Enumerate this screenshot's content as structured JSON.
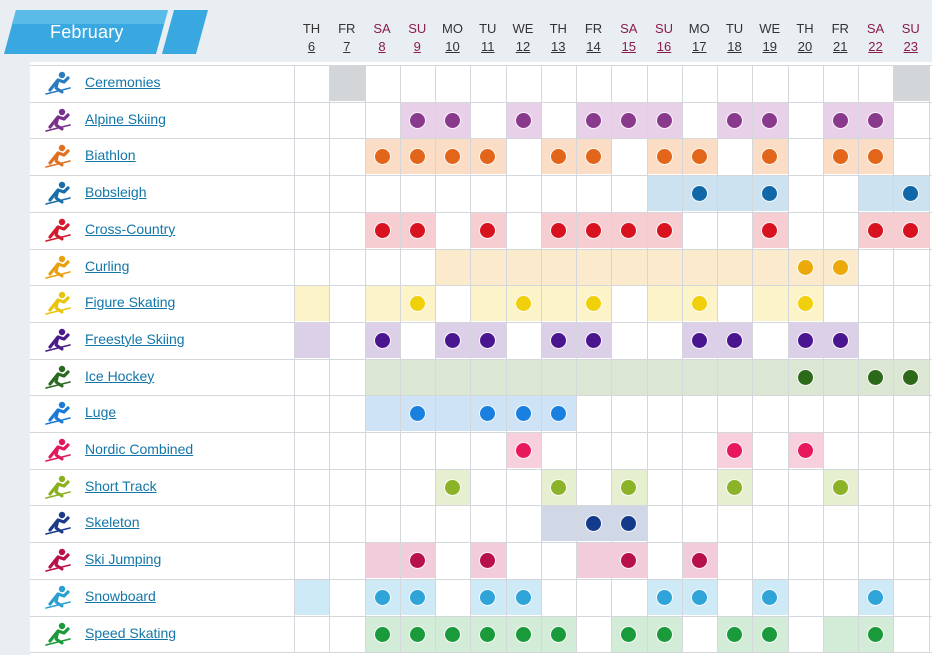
{
  "month": "February",
  "days": [
    {
      "dn": "TH",
      "num": "6",
      "weekend": false
    },
    {
      "dn": "FR",
      "num": "7",
      "weekend": false
    },
    {
      "dn": "SA",
      "num": "8",
      "weekend": true
    },
    {
      "dn": "SU",
      "num": "9",
      "weekend": true
    },
    {
      "dn": "MO",
      "num": "10",
      "weekend": false
    },
    {
      "dn": "TU",
      "num": "11",
      "weekend": false
    },
    {
      "dn": "WE",
      "num": "12",
      "weekend": false
    },
    {
      "dn": "TH",
      "num": "13",
      "weekend": false
    },
    {
      "dn": "FR",
      "num": "14",
      "weekend": false
    },
    {
      "dn": "SA",
      "num": "15",
      "weekend": true
    },
    {
      "dn": "SU",
      "num": "16",
      "weekend": true
    },
    {
      "dn": "MO",
      "num": "17",
      "weekend": false
    },
    {
      "dn": "TU",
      "num": "18",
      "weekend": false
    },
    {
      "dn": "WE",
      "num": "19",
      "weekend": false
    },
    {
      "dn": "TH",
      "num": "20",
      "weekend": false
    },
    {
      "dn": "FR",
      "num": "21",
      "weekend": false
    },
    {
      "dn": "SA",
      "num": "22",
      "weekend": true
    },
    {
      "dn": "SU",
      "num": "23",
      "weekend": true
    }
  ],
  "colors": {
    "header_accent": "#3aa8e0",
    "weekday_text": "#333333",
    "weekend_text": "#8a1c4b",
    "link": "#1276a8"
  },
  "sports": [
    {
      "name": "Ceremonies",
      "icon": "ceremonies-icon",
      "color": "#2a7cc0",
      "bg": "#d3d6d9",
      "dot": "#2a7cc0",
      "active": [
        1,
        17
      ],
      "medal": []
    },
    {
      "name": "Alpine Skiing",
      "icon": "alpine-skiing-icon",
      "color": "#7a2f8a",
      "bg": "#e8d0e8",
      "dot": "#8a3a8c",
      "active": [
        3,
        4,
        6,
        8,
        9,
        10,
        12,
        13,
        15,
        16
      ],
      "medal": [
        3,
        4,
        6,
        8,
        9,
        10,
        12,
        13,
        15,
        16
      ]
    },
    {
      "name": "Biathlon",
      "icon": "biathlon-icon",
      "color": "#e07020",
      "bg": "#fbdcc4",
      "dot": "#e2651a",
      "active": [
        2,
        3,
        4,
        5,
        7,
        8,
        10,
        11,
        13,
        15,
        16
      ],
      "medal": [
        2,
        3,
        4,
        5,
        7,
        8,
        10,
        11,
        13,
        15,
        16
      ]
    },
    {
      "name": "Bobsleigh",
      "icon": "bobsleigh-icon",
      "color": "#1a6ea8",
      "bg": "#cde2f0",
      "dot": "#1068a8",
      "active": [
        10,
        11,
        12,
        13,
        16,
        17
      ],
      "medal": [
        11,
        13,
        17
      ]
    },
    {
      "name": "Cross-Country",
      "icon": "cross-country-icon",
      "color": "#d41a2a",
      "bg": "#f6cdd0",
      "dot": "#d8121e",
      "active": [
        2,
        3,
        5,
        7,
        8,
        9,
        10,
        13,
        16,
        17
      ],
      "medal": [
        2,
        3,
        5,
        7,
        8,
        9,
        10,
        13,
        16,
        17
      ]
    },
    {
      "name": "Curling",
      "icon": "curling-icon",
      "color": "#e8a010",
      "bg": "#fbeacb",
      "dot": "#ecaa0a",
      "active": [
        4,
        5,
        6,
        7,
        8,
        9,
        10,
        11,
        12,
        13,
        14,
        15
      ],
      "medal": [
        14,
        15
      ]
    },
    {
      "name": "Figure Skating",
      "icon": "figure-skating-icon",
      "color": "#e8c40a",
      "bg": "#fcf4c8",
      "dot": "#f0d00a",
      "active": [
        0,
        2,
        3,
        5,
        6,
        7,
        8,
        10,
        11,
        13,
        14
      ],
      "medal": [
        3,
        6,
        8,
        11,
        14
      ]
    },
    {
      "name": "Freestyle Skiing",
      "icon": "freestyle-skiing-icon",
      "color": "#4a1a8a",
      "bg": "#dcd0e8",
      "dot": "#4a1690",
      "active": [
        0,
        2,
        4,
        5,
        7,
        8,
        11,
        12,
        14,
        15
      ],
      "medal": [
        2,
        4,
        5,
        7,
        8,
        11,
        12,
        14,
        15
      ]
    },
    {
      "name": "Ice Hockey",
      "icon": "ice-hockey-icon",
      "color": "#2a6a20",
      "bg": "#dbe6d3",
      "dot": "#2c6a1a",
      "active": [
        2,
        3,
        4,
        5,
        6,
        7,
        8,
        9,
        10,
        11,
        12,
        13,
        14,
        15,
        16,
        17
      ],
      "medal": [
        14,
        16,
        17
      ]
    },
    {
      "name": "Luge",
      "icon": "luge-icon",
      "color": "#1a7ad8",
      "bg": "#cfe3f6",
      "dot": "#1a80e0",
      "active": [
        2,
        3,
        4,
        5,
        6,
        7
      ],
      "medal": [
        3,
        5,
        6,
        7
      ]
    },
    {
      "name": "Nordic Combined",
      "icon": "nordic-combined-icon",
      "color": "#e01a5a",
      "bg": "#f8cfdc",
      "dot": "#e8185c",
      "active": [
        6,
        12,
        14
      ],
      "medal": [
        6,
        12,
        14
      ]
    },
    {
      "name": "Short Track",
      "icon": "short-track-icon",
      "color": "#8ab020",
      "bg": "#e6efd0",
      "dot": "#8cb228",
      "active": [
        4,
        7,
        9,
        12,
        15
      ],
      "medal": [
        4,
        7,
        9,
        12,
        15
      ]
    },
    {
      "name": "Skeleton",
      "icon": "skeleton-icon",
      "color": "#1a3a8a",
      "bg": "#d0d8e8",
      "dot": "#143a8c",
      "active": [
        7,
        8,
        9
      ],
      "medal": [
        8,
        9
      ]
    },
    {
      "name": "Ski Jumping",
      "icon": "ski-jumping-icon",
      "color": "#b8104a",
      "bg": "#f3ccdc",
      "dot": "#b8104a",
      "active": [
        2,
        3,
        5,
        8,
        9,
        11
      ],
      "medal": [
        3,
        5,
        9,
        11
      ]
    },
    {
      "name": "Snowboard",
      "icon": "snowboard-icon",
      "color": "#2aa0d0",
      "bg": "#cdeaf6",
      "dot": "#2ea4d8",
      "active": [
        0,
        2,
        3,
        5,
        6,
        10,
        11,
        13,
        16
      ],
      "medal": [
        2,
        3,
        5,
        6,
        10,
        11,
        13,
        16
      ]
    },
    {
      "name": "Speed Skating",
      "icon": "speed-skating-icon",
      "color": "#1a9a3a",
      "bg": "#d3ecd8",
      "dot": "#1a9a3a",
      "active": [
        2,
        3,
        4,
        5,
        6,
        7,
        9,
        10,
        12,
        13,
        15,
        16
      ],
      "medal": [
        2,
        3,
        4,
        5,
        6,
        7,
        9,
        10,
        12,
        13,
        16
      ]
    }
  ]
}
